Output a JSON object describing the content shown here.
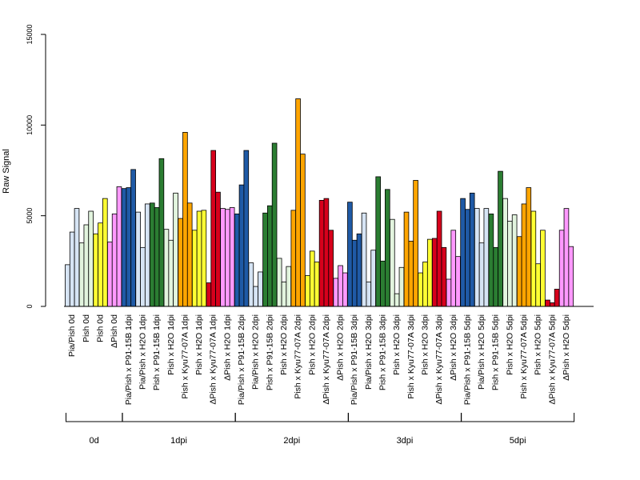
{
  "chart_data": {
    "type": "bar",
    "title": "",
    "xlabel": "",
    "ylabel": "Raw Signal",
    "ylim": [
      0,
      15000
    ],
    "yticks": [
      "0",
      "5000",
      "10000",
      "15000"
    ],
    "grid": false,
    "colors": {
      "lightblue": "#d6e4f4",
      "lightgreen": "#e2f4de",
      "yellow": "#ffff33",
      "pink": "#ff99ff",
      "blue": "#1f5aa6",
      "green": "#2b7d32",
      "orange": "#ffa500",
      "red": "#d7001c"
    },
    "groups": [
      {
        "label": "0d",
        "categories": [
          {
            "label": "Pia/Pish 0d",
            "values": [
              2300,
              4100,
              5400
            ],
            "color": "lightblue"
          },
          {
            "label": "Pish 0d",
            "values": [
              3500,
              4500,
              5250
            ],
            "color": "lightgreen"
          },
          {
            "label": "Pish 0d",
            "values": [
              4000,
              4600,
              5950
            ],
            "color": "yellow"
          },
          {
            "label": "ΔPish 0d",
            "values": [
              3550,
              5100,
              6600
            ],
            "color": "pink"
          }
        ]
      },
      {
        "label": "1dpi",
        "categories": [
          {
            "label": "Pia/Pish x P91-15B 1dpi",
            "values": [
              6500,
              6550,
              7550
            ],
            "color": "blue"
          },
          {
            "label": "Pia/Pish x H2O 1dpi",
            "values": [
              5200,
              3250,
              5650
            ],
            "color": "lightblue"
          },
          {
            "label": "Pish x P91-15B 1dpi",
            "values": [
              5700,
              5450,
              8150
            ],
            "color": "green"
          },
          {
            "label": "Pish x H2O 1dpi",
            "values": [
              4250,
              3650,
              6250
            ],
            "color": "lightgreen"
          },
          {
            "label": "Pish x Kyu77-07A 1dpi",
            "values": [
              4850,
              9600,
              5700
            ],
            "color": "orange"
          },
          {
            "label": "Pish x H2O 1dpi",
            "values": [
              4200,
              5250,
              5300
            ],
            "color": "yellow"
          },
          {
            "label": "ΔPish x Kyu77-07A 1dpi",
            "values": [
              1300,
              8600,
              6300
            ],
            "color": "red"
          },
          {
            "label": "ΔPish x H2O 1dpi",
            "values": [
              5400,
              5350,
              5450
            ],
            "color": "pink"
          }
        ]
      },
      {
        "label": "2dpi",
        "categories": [
          {
            "label": "Pia/Pish x P91-15B 2dpi",
            "values": [
              5100,
              6700,
              8600
            ],
            "color": "blue"
          },
          {
            "label": "Pia/Pish x H2O 2dpi",
            "values": [
              2400,
              1100,
              1900
            ],
            "color": "lightblue"
          },
          {
            "label": "Pish x P91-15B 2dpi",
            "values": [
              5150,
              5550,
              9000
            ],
            "color": "green"
          },
          {
            "label": "Pish x H2O 2dpi",
            "values": [
              2650,
              1350,
              2200
            ],
            "color": "lightgreen"
          },
          {
            "label": "Pish x Kyu77-07A 2dpi",
            "values": [
              5300,
              11450,
              8400
            ],
            "color": "orange"
          },
          {
            "label": "Pish x H2O 2dpi",
            "values": [
              1700,
              3050,
              2450
            ],
            "color": "yellow"
          },
          {
            "label": "ΔPish x Kyu77-07A 2dpi",
            "values": [
              5850,
              5950,
              4200
            ],
            "color": "red"
          },
          {
            "label": "ΔPish x H2O 2dpi",
            "values": [
              1550,
              2250,
              1850
            ],
            "color": "pink"
          }
        ]
      },
      {
        "label": "3dpi",
        "categories": [
          {
            "label": "Pia/Pish x P91-15B 3dpi",
            "values": [
              5750,
              3650,
              4000
            ],
            "color": "blue"
          },
          {
            "label": "Pia/Pish x H2O 3dpi",
            "values": [
              5150,
              1350,
              3100
            ],
            "color": "lightblue"
          },
          {
            "label": "Pish x P91-15B 3dpi",
            "values": [
              7150,
              2500,
              6450
            ],
            "color": "green"
          },
          {
            "label": "Pish x H2O 3dpi",
            "values": [
              4800,
              700,
              2150
            ],
            "color": "lightgreen"
          },
          {
            "label": "Pish x Kyu77-07A 3dpi",
            "values": [
              5200,
              3600,
              6950
            ],
            "color": "orange"
          },
          {
            "label": "Pish x H2O 3dpi",
            "values": [
              1850,
              2450,
              3700
            ],
            "color": "yellow"
          },
          {
            "label": "ΔPish x Kyu77-07A 3dpi",
            "values": [
              3750,
              5250,
              3250
            ],
            "color": "red"
          },
          {
            "label": "ΔPish x H2O 3dpi",
            "values": [
              1500,
              4200,
              2750
            ],
            "color": "pink"
          }
        ]
      },
      {
        "label": "5dpi",
        "categories": [
          {
            "label": "Pia/Pish x P91-15B 5dpi",
            "values": [
              5950,
              5350,
              6250
            ],
            "color": "blue"
          },
          {
            "label": "Pia/Pish x H2O 5dpi",
            "values": [
              5400,
              3500,
              5400
            ],
            "color": "lightblue"
          },
          {
            "label": "Pish x P91-15B 5dpi",
            "values": [
              5100,
              3250,
              7450
            ],
            "color": "green"
          },
          {
            "label": "Pish x H2O 5dpi",
            "values": [
              5950,
              4700,
              5050
            ],
            "color": "lightgreen"
          },
          {
            "label": "Pish x Kyu77-07A 5dpi",
            "values": [
              3850,
              5650,
              6550
            ],
            "color": "orange"
          },
          {
            "label": "Pish x H2O 5dpi",
            "values": [
              5250,
              2350,
              4200
            ],
            "color": "yellow"
          },
          {
            "label": "ΔPish x Kyu77-07A 5dpi",
            "values": [
              350,
              200,
              950
            ],
            "color": "red"
          },
          {
            "label": "ΔPish x H2O 5dpi",
            "values": [
              4200,
              5400,
              3300
            ],
            "color": "pink"
          }
        ]
      }
    ]
  }
}
